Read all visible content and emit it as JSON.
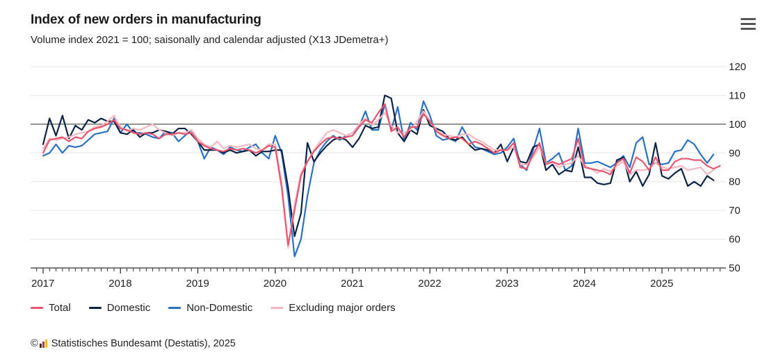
{
  "header": {
    "title": "Index of new orders in manufacturing",
    "subtitle": "Volume index 2021 = 100; saisonally and calendar adjusted (X13 JDemetra+)",
    "menu_icon": "hamburger-menu-icon"
  },
  "credit": {
    "copyright_symbol": "©",
    "text": "Statistisches Bundesamt (Destatis), 2025"
  },
  "chart_data": {
    "type": "line",
    "x_start": "2017-01",
    "x_end": "2025-12",
    "x_ticks": [
      "2017",
      "2018",
      "2019",
      "2020",
      "2021",
      "2022",
      "2023",
      "2024",
      "2025"
    ],
    "ylim": [
      50,
      120
    ],
    "y_ticks": [
      50,
      60,
      70,
      80,
      90,
      100,
      110,
      120
    ],
    "reference_line": 100,
    "grid": true,
    "legend_position": "bottom-left",
    "series": [
      {
        "name": "Total",
        "color": "#e8566e",
        "values": [
          90,
          94.5,
          95,
          95.5,
          94,
          95.5,
          95,
          97.5,
          98.5,
          99,
          100,
          101.5,
          98.5,
          98,
          97,
          96.5,
          97,
          96.5,
          95,
          96.5,
          96.5,
          97,
          96.5,
          97,
          94,
          92.5,
          91.5,
          91,
          90.5,
          91.5,
          91,
          91.5,
          91,
          90,
          91,
          92.5,
          92,
          78,
          58,
          70,
          82,
          87,
          90.5,
          93,
          95,
          95.5,
          95,
          95.5,
          96,
          99,
          101.5,
          100.5,
          104,
          107,
          97.5,
          99,
          95.5,
          99,
          99,
          103.5,
          101,
          97.5,
          96,
          95,
          95.5,
          95,
          93,
          94,
          93,
          91.5,
          90,
          91,
          91,
          93.5,
          85,
          84.5,
          89.5,
          93.5,
          86,
          87,
          86,
          87,
          88,
          95,
          85,
          84.5,
          84,
          83.5,
          82.5,
          86.5,
          88,
          83,
          88.5,
          87,
          84,
          88.5,
          84,
          84,
          87,
          88,
          88,
          87.5,
          87.5,
          85.5,
          84.5,
          85.5
        ]
      },
      {
        "name": "Domestic",
        "color": "#0c2346",
        "values": [
          93,
          102,
          96,
          103,
          95,
          99.5,
          98,
          101.5,
          100.5,
          102,
          101,
          101,
          97,
          96.5,
          98,
          95.5,
          97,
          97,
          98,
          97.5,
          96.5,
          98.5,
          98.5,
          96.5,
          94,
          91,
          91,
          91,
          90,
          91,
          90,
          90.5,
          91,
          89,
          90.5,
          90.5,
          91,
          91,
          78,
          61,
          69,
          93.5,
          87,
          90,
          92.5,
          94.5,
          95.5,
          94.5,
          92,
          95,
          99.5,
          98.5,
          99,
          110,
          109,
          97,
          94,
          98,
          96.5,
          105,
          99.5,
          98.5,
          97.5,
          95,
          94.5,
          95.5,
          93,
          91,
          91.5,
          91,
          90,
          93,
          87,
          92,
          87,
          86.5,
          92,
          93,
          84,
          86,
          82.5,
          84,
          83.5,
          92,
          81.5,
          81.5,
          79.5,
          79,
          79.5,
          87.5,
          88.5,
          80,
          83.5,
          78.5,
          82.5,
          93.5,
          82,
          81,
          83,
          84.5,
          78.5,
          80,
          78.5,
          82,
          80.5
        ]
      },
      {
        "name": "Non-Domestic",
        "color": "#2a70c4",
        "values": [
          89,
          90,
          93,
          90,
          92.5,
          92,
          92.5,
          94.5,
          96.5,
          97,
          97.5,
          102,
          97,
          100,
          97,
          97,
          96.5,
          95.5,
          95,
          97.5,
          97,
          94,
          96,
          98,
          94,
          88,
          92,
          91,
          89.5,
          92,
          91,
          90.5,
          92,
          93,
          90,
          88,
          96,
          90,
          75,
          54,
          60,
          75,
          86.5,
          91,
          94,
          96,
          94.5,
          96,
          97,
          99,
          104.5,
          98,
          98,
          107,
          98,
          106,
          94,
          100.5,
          98,
          108,
          103,
          96,
          94.5,
          95,
          94,
          99,
          95,
          92,
          91.5,
          90.5,
          89.5,
          90,
          92,
          95,
          86,
          84,
          91,
          98.5,
          86.5,
          88,
          90,
          84,
          85.5,
          98.5,
          86.5,
          86.5,
          87,
          86,
          85,
          86.5,
          89,
          85,
          93.5,
          95.5,
          86,
          86.5,
          86,
          86.5,
          90.5,
          91,
          94.5,
          93,
          89.5,
          86.5,
          89.5
        ]
      },
      {
        "name": "Excluding major orders",
        "color": "#f5b8c2",
        "values": [
          91.5,
          95,
          94.5,
          95,
          95.5,
          96.5,
          97,
          97.5,
          99,
          99.5,
          101,
          103,
          99,
          97.5,
          98.5,
          98,
          99,
          100,
          98,
          97,
          96,
          97,
          97,
          98,
          95,
          93,
          92,
          94,
          91.5,
          92.5,
          92,
          92.5,
          93,
          91.5,
          91,
          93,
          93,
          80,
          57,
          72,
          83,
          87,
          91,
          94,
          97,
          98,
          97,
          96,
          97,
          100,
          102,
          99.5,
          101.5,
          104,
          99.5,
          97,
          97,
          98,
          101,
          104.5,
          101,
          98,
          96.5,
          96,
          95.5,
          96.5,
          96.5,
          95,
          94,
          92.5,
          91,
          91,
          91,
          92,
          86,
          86,
          88.5,
          92,
          86.5,
          86.5,
          85,
          86,
          86.5,
          89,
          85.5,
          84.5,
          83,
          84.5,
          83.5,
          85.5,
          87,
          82.5,
          84,
          84,
          84.5,
          86.5,
          85,
          84.5,
          85,
          85.5,
          84,
          84.5,
          85,
          82.5,
          84
        ]
      }
    ]
  }
}
